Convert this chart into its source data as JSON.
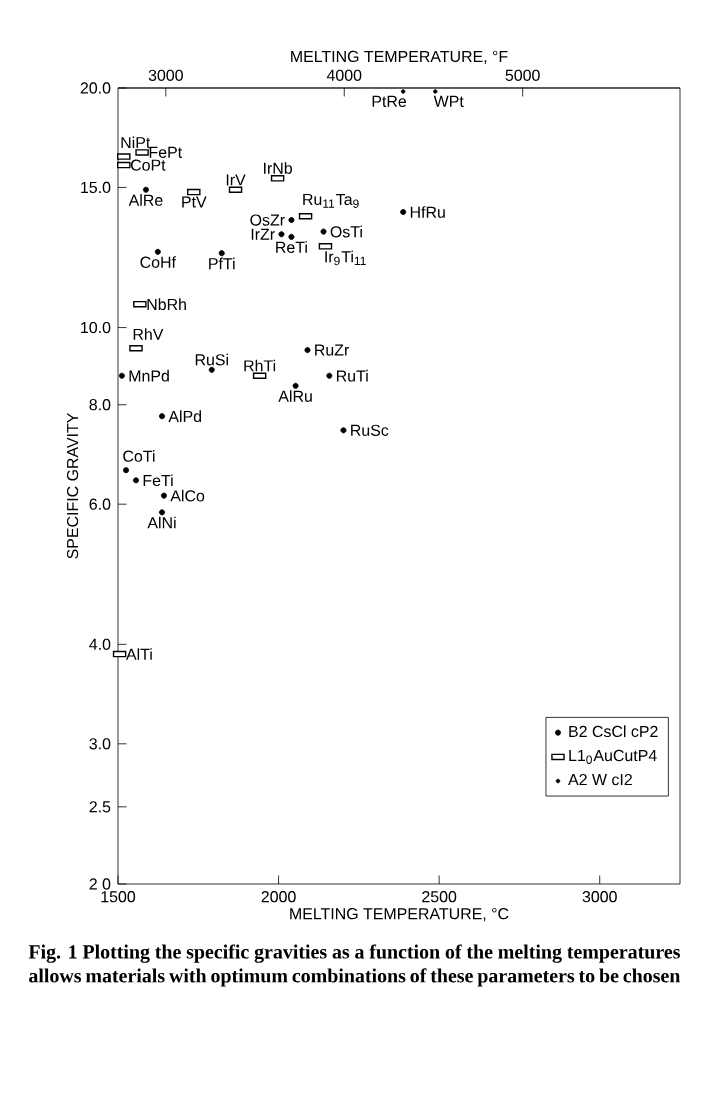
{
  "chart_data": {
    "type": "scatter",
    "xlabel": "MELTING TEMPERATURE, °C",
    "x2label": "MELTING TEMPERATURE, °F",
    "ylabel": "SPECIFIC GRAVITY",
    "log": "y",
    "grid": false,
    "legend": "bottom right",
    "xlim": [
      1500,
      3250
    ],
    "xticks": [
      1500,
      2000,
      2500,
      3000
    ],
    "x2lim": [
      2732,
      5882
    ],
    "x2ticks": [
      3000,
      4000,
      5000
    ],
    "ylim": [
      2,
      20
    ],
    "yticks": [
      {
        "value": 2,
        "label": "2 0"
      },
      {
        "value": 2.5,
        "label": "2.5"
      },
      {
        "value": 3,
        "label": "3.0"
      },
      {
        "value": 4,
        "label": "4.0"
      },
      {
        "value": 6,
        "label": "6.0"
      },
      {
        "value": 8,
        "label": "8.0"
      },
      {
        "value": 10,
        "label": "10.0"
      },
      {
        "value": 15,
        "label": "15.0"
      },
      {
        "value": 20,
        "label": "20.0"
      }
    ],
    "series": [
      {
        "name": "B2 CsCl cP2",
        "color": "#000000",
        "marker": "circle",
        "x": [
          1587,
          2040,
          2009,
          2040,
          2140,
          2388,
          1624,
          1823,
          2090,
          1792,
          1512,
          2053,
          2158,
          1637,
          2202,
          1525,
          1556,
          1643,
          1637
        ],
        "values": [
          14.9,
          13.65,
          13.1,
          13.0,
          13.2,
          13.97,
          12.45,
          12.4,
          9.37,
          8.85,
          8.7,
          8.45,
          8.7,
          7.74,
          7.43,
          6.62,
          6.43,
          6.15,
          5.86
        ]
      },
      {
        "name": "L1$_{0}$AuCutP4",
        "color": "#000000",
        "marker": "square",
        "x": [
          1518,
          1575,
          1518,
          1736,
          1866,
          1997,
          2084,
          2146,
          1568,
          1556,
          1941,
          1505
        ],
        "values": [
          16.4,
          16.6,
          16.0,
          14.8,
          14.9,
          15.4,
          13.8,
          12.65,
          10.7,
          9.42,
          8.7,
          3.89
        ]
      },
      {
        "name": "A2 W cI2",
        "color": "#000000",
        "marker": "circle",
        "x": [
          2388,
          2488
        ],
        "values": [
          19.8,
          19.8
        ]
      }
    ],
    "annotations": [
      {
        "text": "PtRe",
        "x": 2388,
        "y": 19.8
      },
      {
        "text": "WPt",
        "x": 2488,
        "y": 19.8
      },
      {
        "text": "NiPt",
        "x": 1518,
        "y": 16.4
      },
      {
        "text": "FePt",
        "x": 1575,
        "y": 16.6
      },
      {
        "text": "CoPt",
        "x": 1518,
        "y": 16.0
      },
      {
        "text": "AlRe",
        "x": 1587,
        "y": 14.9
      },
      {
        "text": "PtV",
        "x": 1736,
        "y": 14.8
      },
      {
        "text": "IrV",
        "x": 1866,
        "y": 14.9
      },
      {
        "text": "IrNb",
        "x": 1997,
        "y": 15.4
      },
      {
        "text": "OsZr",
        "x": 2040,
        "y": 13.65
      },
      {
        "text": "Ru$_{11}$Ta$_{9}$",
        "x": 2084,
        "y": 13.8
      },
      {
        "text": "IrZr",
        "x": 2009,
        "y": 13.1
      },
      {
        "text": "ReTi",
        "x": 2040,
        "y": 13.0
      },
      {
        "text": "OsTi",
        "x": 2140,
        "y": 13.2
      },
      {
        "text": "Ir$_{9}$Ti$_{11}$",
        "x": 2146,
        "y": 12.65
      },
      {
        "text": "HfRu",
        "x": 2388,
        "y": 13.97
      },
      {
        "text": "CoHf",
        "x": 1624,
        "y": 12.45
      },
      {
        "text": "PfTi",
        "x": 1823,
        "y": 12.4
      },
      {
        "text": "NbRh",
        "x": 1568,
        "y": 10.7
      },
      {
        "text": "RhV",
        "x": 1556,
        "y": 9.42
      },
      {
        "text": "RuZr",
        "x": 2090,
        "y": 9.37
      },
      {
        "text": "RuSi",
        "x": 1792,
        "y": 8.85
      },
      {
        "text": "RhTi",
        "x": 1941,
        "y": 8.7
      },
      {
        "text": "MnPd",
        "x": 1512,
        "y": 8.7
      },
      {
        "text": "AlRu",
        "x": 2053,
        "y": 8.45
      },
      {
        "text": "RuTi",
        "x": 2158,
        "y": 8.7
      },
      {
        "text": "AlPd",
        "x": 1637,
        "y": 7.74
      },
      {
        "text": "RuSc",
        "x": 2202,
        "y": 7.43
      },
      {
        "text": "CoTi",
        "x": 1525,
        "y": 6.62
      },
      {
        "text": "FeTi",
        "x": 1556,
        "y": 6.43
      },
      {
        "text": "AlCo",
        "x": 1643,
        "y": 6.15
      },
      {
        "text": "AlNi",
        "x": 1637,
        "y": 5.86
      },
      {
        "text": "AlTi",
        "x": 1505,
        "y": 3.89
      },
      "Fig. 1 Plotting the specific gravities as a function of the melting temperatures allows materials with optimum combinations of these parameters to be chosen"
    ]
  }
}
